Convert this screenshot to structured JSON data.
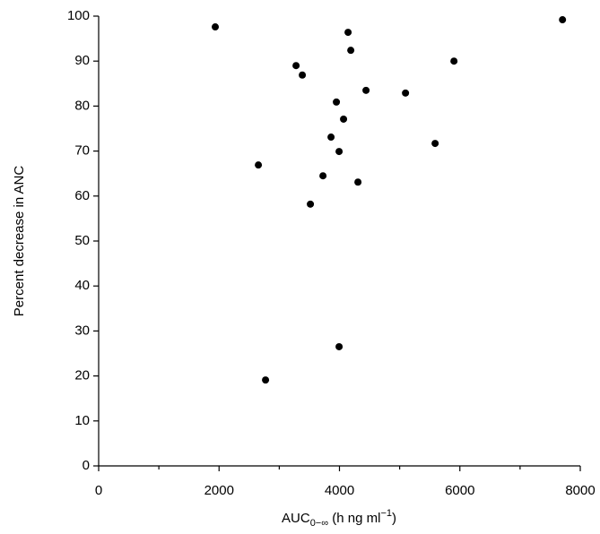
{
  "chart_data": {
    "type": "scatter",
    "x_label": {
      "main": "AUC",
      "sub": "0−∞",
      "mid": " (h ng ml",
      "sup": "−1",
      "end": ")"
    },
    "y_label": "Percent decrease in ANC",
    "x": [
      1937,
      2653,
      2772,
      3279,
      3383,
      3517,
      3726,
      3860,
      3949,
      3994,
      3994,
      4068,
      4143,
      4188,
      4307,
      4441,
      5097,
      5589,
      5902,
      7705
    ],
    "values": [
      97.6,
      66.9,
      19.1,
      89.0,
      86.9,
      58.2,
      64.5,
      73.1,
      80.9,
      69.9,
      26.5,
      77.1,
      96.4,
      92.4,
      63.1,
      83.5,
      82.9,
      71.7,
      90.0,
      99.2
    ],
    "color": "#000000",
    "xlim": [
      0,
      8000
    ],
    "xticks": [
      0,
      2000,
      4000,
      6000,
      8000
    ],
    "xminorticks": [
      1000,
      3000,
      5000,
      7000
    ],
    "ylim": [
      0,
      100
    ],
    "yticks": [
      0,
      10,
      20,
      30,
      40,
      50,
      60,
      70,
      80,
      90,
      100
    ]
  }
}
